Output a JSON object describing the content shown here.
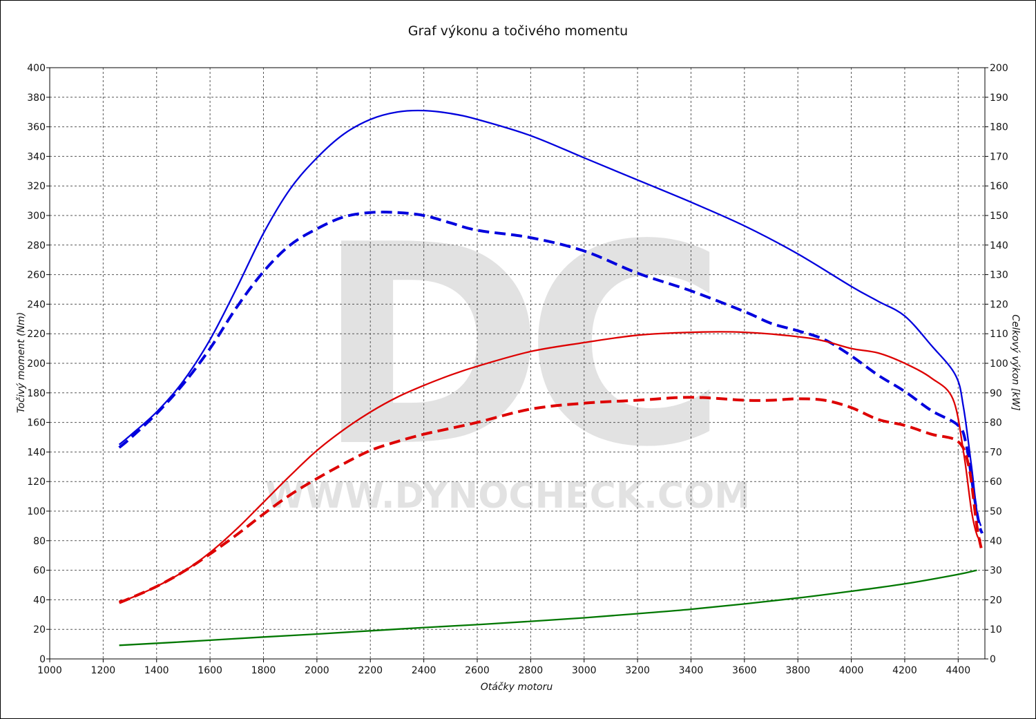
{
  "chart_data": {
    "type": "line",
    "title": "Graf výkonu a točivého momentu",
    "xlabel": "Otáčky motoru",
    "ylabel_left": "Točivý moment (Nm)",
    "ylabel_right": "Celkový výkon [kW]",
    "xlim": [
      1000,
      4500
    ],
    "ylim_left": [
      0,
      400
    ],
    "ylim_right": [
      0,
      200
    ],
    "x_ticks": [
      "1000",
      "1200",
      "1400",
      "1600",
      "1800",
      "2000",
      "2200",
      "2400",
      "2600",
      "2800",
      "3000",
      "3200",
      "3400",
      "3600",
      "3800",
      "4000",
      "4200",
      "4400"
    ],
    "y_ticks_left": [
      "0",
      "20",
      "40",
      "60",
      "80",
      "100",
      "120",
      "140",
      "160",
      "180",
      "200",
      "220",
      "240",
      "260",
      "280",
      "300",
      "320",
      "340",
      "360",
      "380",
      "400"
    ],
    "y_ticks_right": [
      "0",
      "10",
      "20",
      "30",
      "40",
      "50",
      "60",
      "70",
      "80",
      "90",
      "100",
      "110",
      "120",
      "130",
      "140",
      "150",
      "160",
      "170",
      "180",
      "190",
      "200"
    ],
    "grid": true,
    "watermark": {
      "logo": "DC",
      "text": "WWW.DYNOCHECK.COM"
    },
    "series": [
      {
        "color": "#0000dd",
        "style": "solid",
        "axis": "left",
        "x": [
          1260,
          1300,
          1400,
          1500,
          1600,
          1700,
          1800,
          1900,
          2000,
          2100,
          2200,
          2300,
          2400,
          2500,
          2600,
          2800,
          3000,
          3200,
          3400,
          3600,
          3800,
          4000,
          4100,
          4200,
          4300,
          4390,
          4420,
          4450,
          4470,
          4485
        ],
        "y": [
          145,
          151,
          167,
          188,
          216,
          251,
          288,
          318,
          339,
          355,
          365,
          370,
          371,
          369,
          365,
          354,
          339,
          324,
          309,
          293,
          274,
          252,
          242,
          232,
          212,
          192,
          170,
          130,
          100,
          90
        ]
      },
      {
        "color": "#0000dd",
        "style": "dashed",
        "axis": "left",
        "x": [
          1260,
          1300,
          1400,
          1500,
          1600,
          1700,
          1800,
          1900,
          2000,
          2100,
          2200,
          2300,
          2400,
          2500,
          2600,
          2800,
          3000,
          3200,
          3400,
          3600,
          3700,
          3800,
          3900,
          4000,
          4100,
          4200,
          4300,
          4400,
          4430,
          4460,
          4480,
          4490
        ],
        "y": [
          143,
          149,
          166,
          186,
          210,
          238,
          262,
          280,
          291,
          299,
          302,
          302,
          300,
          295,
          290,
          285,
          276,
          261,
          249,
          235,
          227,
          222,
          216,
          205,
          192,
          181,
          168,
          158,
          145,
          110,
          90,
          85
        ]
      },
      {
        "color": "#dd0000",
        "style": "solid",
        "axis": "right",
        "x": [
          1260,
          1300,
          1400,
          1500,
          1600,
          1700,
          1800,
          1900,
          2000,
          2100,
          2200,
          2300,
          2400,
          2500,
          2600,
          2800,
          3000,
          3200,
          3400,
          3600,
          3800,
          3900,
          4000,
          4100,
          4200,
          4300,
          4380,
          4420,
          4450,
          4470,
          4485
        ],
        "y": [
          19.5,
          20.5,
          24.5,
          29.5,
          36,
          44,
          53,
          62,
          70.5,
          77.5,
          83.5,
          88.5,
          92.5,
          96,
          99,
          104,
          107,
          109.5,
          110.5,
          110.5,
          109,
          107.5,
          105,
          103.5,
          100,
          95,
          88,
          70,
          50,
          42,
          40
        ]
      },
      {
        "color": "#dd0000",
        "style": "dashed",
        "axis": "right",
        "x": [
          1260,
          1300,
          1400,
          1500,
          1600,
          1700,
          1800,
          1900,
          2000,
          2100,
          2200,
          2300,
          2400,
          2500,
          2600,
          2800,
          3000,
          3200,
          3400,
          3600,
          3700,
          3800,
          3900,
          4000,
          4100,
          4200,
          4300,
          4400,
          4440,
          4470,
          4490
        ],
        "y": [
          19,
          20.5,
          24.5,
          29.5,
          35.5,
          42,
          49,
          55.5,
          61,
          66,
          70.5,
          73.5,
          76,
          78,
          80,
          84.5,
          86.5,
          87.5,
          88.5,
          87.5,
          87.5,
          88,
          87.5,
          85,
          81,
          79,
          76,
          73.5,
          65,
          45,
          36
        ]
      },
      {
        "color": "#007700",
        "style": "solid",
        "axis": "right",
        "x": [
          1260,
          1500,
          1800,
          2000,
          2200,
          2400,
          2600,
          2800,
          3000,
          3200,
          3400,
          3600,
          3800,
          4000,
          4200,
          4400,
          4470
        ],
        "y": [
          4.6,
          5.8,
          7.4,
          8.4,
          9.5,
          10.6,
          11.6,
          12.7,
          13.9,
          15.3,
          16.8,
          18.6,
          20.6,
          22.9,
          25.4,
          28.6,
          30
        ]
      }
    ]
  }
}
